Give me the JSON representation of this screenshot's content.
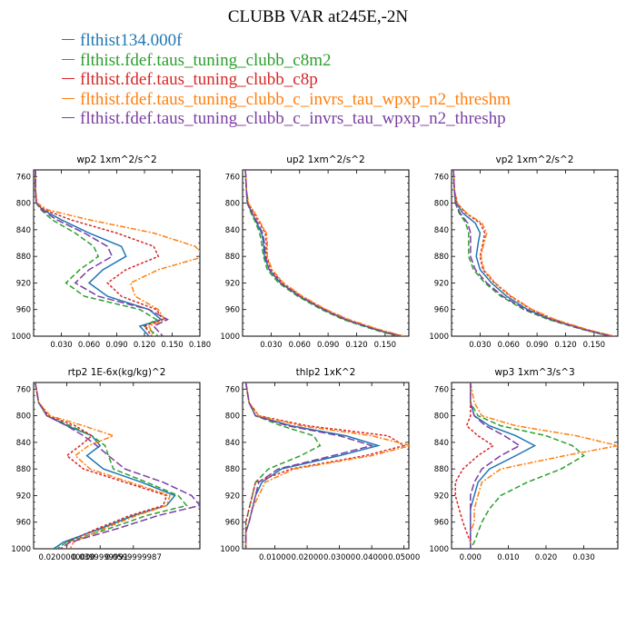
{
  "title": "CLUBB VAR at245E,-2N",
  "colors": {
    "flthist134.000f": "#1f77b4",
    "flthist.fdef.taus_tuning_clubb_c8m2": "#2ca02c",
    "flthist.fdef.taus_tuning_clubb_c8p": "#d62728",
    "flthist.fdef.taus_tuning_clubb_c_invrs_tau_wpxp_n2_threshm": "#ff7f0e",
    "flthist.fdef.taus_tuning_clubb_c_invrs_tau_wpxp_n2_threshp": "#7b3fa3"
  },
  "legend": [
    "flthist134.000f",
    "flthist.fdef.taus_tuning_clubb_c8m2",
    "flthist.fdef.taus_tuning_clubb_c8p",
    "flthist.fdef.taus_tuning_clubb_c_invrs_tau_wpxp_n2_threshm",
    "flthist.fdef.taus_tuning_clubb_c_invrs_tau_wpxp_n2_threshp"
  ],
  "chart_data": [
    {
      "type": "line",
      "title": "wp2  1xm^2/s^2",
      "xlim": [
        0,
        0.18
      ],
      "ylim": [
        1000,
        750
      ],
      "xticks": [
        0.03,
        0.06,
        0.09,
        0.12,
        0.15,
        0.18
      ],
      "xticklabels": [
        "0.030",
        "0.060",
        "0.090",
        "0.120",
        "0.150",
        "0.180"
      ],
      "yticks": [
        760,
        800,
        840,
        880,
        920,
        960,
        1000
      ],
      "y": [
        750,
        780,
        800,
        810,
        825,
        845,
        865,
        880,
        900,
        920,
        940,
        960,
        975,
        985,
        1000
      ],
      "series": [
        {
          "name": "flthist134.000f",
          "x": [
            0.002,
            0.002,
            0.003,
            0.01,
            0.03,
            0.06,
            0.095,
            0.1,
            0.075,
            0.06,
            0.08,
            0.125,
            0.138,
            0.115,
            0.125
          ]
        },
        {
          "name": "flthist.fdef.taus_tuning_clubb_c8m2",
          "x": [
            0.002,
            0.002,
            0.003,
            0.008,
            0.02,
            0.045,
            0.065,
            0.07,
            0.05,
            0.035,
            0.055,
            0.115,
            0.133,
            0.12,
            0.135
          ]
        },
        {
          "name": "flthist.fdef.taus_tuning_clubb_c8p",
          "x": [
            0.002,
            0.002,
            0.003,
            0.012,
            0.04,
            0.09,
            0.13,
            0.135,
            0.1,
            0.08,
            0.095,
            0.133,
            0.14,
            0.12,
            0.128
          ]
        },
        {
          "name": "flthist.fdef.taus_tuning_clubb_c_invrs_tau_wpxp_n2_threshm",
          "x": [
            0.002,
            0.002,
            0.004,
            0.015,
            0.06,
            0.13,
            0.175,
            0.185,
            0.135,
            0.105,
            0.11,
            0.135,
            0.142,
            0.125,
            0.13
          ]
        },
        {
          "name": "flthist.fdef.taus_tuning_clubb_c_invrs_tau_wpxp_n2_threshp",
          "x": [
            0.002,
            0.002,
            0.003,
            0.009,
            0.025,
            0.055,
            0.08,
            0.085,
            0.06,
            0.045,
            0.07,
            0.125,
            0.145,
            0.13,
            0.14
          ]
        }
      ]
    },
    {
      "type": "line",
      "title": "up2  1xm^2/s^2",
      "xlim": [
        0,
        0.175
      ],
      "ylim": [
        1000,
        750
      ],
      "xticks": [
        0.03,
        0.06,
        0.09,
        0.12,
        0.15
      ],
      "xticklabels": [
        "0.030",
        "0.060",
        "0.090",
        "0.120",
        "0.150"
      ],
      "yticks": [
        760,
        800,
        840,
        880,
        920,
        960,
        1000
      ],
      "y": [
        750,
        780,
        800,
        815,
        830,
        845,
        860,
        880,
        900,
        920,
        940,
        960,
        975,
        990,
        1000
      ],
      "series": [
        {
          "name": "flthist134.000f",
          "x": [
            0.003,
            0.004,
            0.005,
            0.01,
            0.015,
            0.02,
            0.022,
            0.023,
            0.028,
            0.04,
            0.06,
            0.085,
            0.108,
            0.14,
            0.165
          ]
        },
        {
          "name": "flthist.fdef.taus_tuning_clubb_c8m2",
          "x": [
            0.003,
            0.004,
            0.005,
            0.009,
            0.014,
            0.018,
            0.02,
            0.022,
            0.026,
            0.038,
            0.058,
            0.083,
            0.106,
            0.138,
            0.163
          ]
        },
        {
          "name": "flthist.fdef.taus_tuning_clubb_c8p",
          "x": [
            0.003,
            0.004,
            0.006,
            0.012,
            0.018,
            0.024,
            0.025,
            0.025,
            0.03,
            0.042,
            0.062,
            0.087,
            0.11,
            0.142,
            0.168
          ]
        },
        {
          "name": "flthist.fdef.taus_tuning_clubb_c_invrs_tau_wpxp_n2_threshm",
          "x": [
            0.003,
            0.004,
            0.006,
            0.013,
            0.019,
            0.025,
            0.026,
            0.026,
            0.031,
            0.043,
            0.063,
            0.088,
            0.112,
            0.144,
            0.17
          ]
        },
        {
          "name": "flthist.fdef.taus_tuning_clubb_c_invrs_tau_wpxp_n2_threshp",
          "x": [
            0.003,
            0.004,
            0.005,
            0.01,
            0.016,
            0.021,
            0.023,
            0.024,
            0.028,
            0.04,
            0.06,
            0.085,
            0.108,
            0.14,
            0.166
          ]
        }
      ]
    },
    {
      "type": "line",
      "title": "vp2  1xm^2/s^2",
      "xlim": [
        0,
        0.175
      ],
      "ylim": [
        1000,
        750
      ],
      "xticks": [
        0.03,
        0.06,
        0.09,
        0.12,
        0.15
      ],
      "xticklabels": [
        "0.030",
        "0.060",
        "0.090",
        "0.120",
        "0.150"
      ],
      "yticks": [
        760,
        800,
        840,
        880,
        920,
        960,
        1000
      ],
      "y": [
        750,
        780,
        800,
        815,
        830,
        845,
        860,
        880,
        900,
        920,
        940,
        960,
        975,
        990,
        1000
      ],
      "series": [
        {
          "name": "flthist134.000f",
          "x": [
            0.002,
            0.003,
            0.005,
            0.012,
            0.025,
            0.03,
            0.028,
            0.026,
            0.03,
            0.042,
            0.058,
            0.08,
            0.105,
            0.14,
            0.168
          ]
        },
        {
          "name": "flthist.fdef.taus_tuning_clubb_c8m2",
          "x": [
            0.002,
            0.003,
            0.004,
            0.008,
            0.015,
            0.018,
            0.018,
            0.018,
            0.023,
            0.035,
            0.052,
            0.076,
            0.102,
            0.138,
            0.166
          ]
        },
        {
          "name": "flthist.fdef.taus_tuning_clubb_c8p",
          "x": [
            0.002,
            0.003,
            0.006,
            0.015,
            0.03,
            0.035,
            0.033,
            0.03,
            0.033,
            0.045,
            0.062,
            0.084,
            0.108,
            0.142,
            0.17
          ]
        },
        {
          "name": "flthist.fdef.taus_tuning_clubb_c_invrs_tau_wpxp_n2_threshm",
          "x": [
            0.002,
            0.003,
            0.006,
            0.016,
            0.032,
            0.037,
            0.034,
            0.031,
            0.034,
            0.046,
            0.063,
            0.085,
            0.109,
            0.143,
            0.171
          ]
        },
        {
          "name": "flthist.fdef.taus_tuning_clubb_c_invrs_tau_wpxp_n2_threshp",
          "x": [
            0.002,
            0.003,
            0.004,
            0.009,
            0.017,
            0.02,
            0.02,
            0.02,
            0.025,
            0.037,
            0.054,
            0.078,
            0.104,
            0.139,
            0.167
          ]
        }
      ]
    },
    {
      "type": "line",
      "title": "rtp2  1E-6x(kg/kg)^2",
      "xlim": [
        0,
        0.1
      ],
      "ylim": [
        1000,
        750
      ],
      "xticks": [
        0.02,
        0.04,
        0.06
      ],
      "xticklabels": [
        "0.0200000000",
        "0.0399999991",
        "0.0599999987"
      ],
      "yticks": [
        760,
        800,
        840,
        880,
        920,
        960,
        1000
      ],
      "y": [
        750,
        780,
        800,
        815,
        830,
        845,
        860,
        880,
        900,
        920,
        935,
        950,
        970,
        990,
        1000
      ],
      "series": [
        {
          "name": "flthist134.000f",
          "x": [
            0.001,
            0.003,
            0.008,
            0.02,
            0.035,
            0.04,
            0.032,
            0.042,
            0.065,
            0.085,
            0.08,
            0.06,
            0.04,
            0.018,
            0.012
          ]
        },
        {
          "name": "flthist.fdef.taus_tuning_clubb_c8m2",
          "x": [
            0.001,
            0.003,
            0.008,
            0.022,
            0.035,
            0.043,
            0.045,
            0.048,
            0.068,
            0.087,
            0.092,
            0.068,
            0.045,
            0.02,
            0.014
          ]
        },
        {
          "name": "flthist.fdef.taus_tuning_clubb_c8p",
          "x": [
            0.001,
            0.003,
            0.009,
            0.025,
            0.035,
            0.028,
            0.02,
            0.03,
            0.055,
            0.08,
            0.078,
            0.058,
            0.038,
            0.02,
            0.02
          ]
        },
        {
          "name": "flthist.fdef.taus_tuning_clubb_c_invrs_tau_wpxp_n2_threshm",
          "x": [
            0.001,
            0.003,
            0.01,
            0.03,
            0.048,
            0.033,
            0.025,
            0.034,
            0.058,
            0.082,
            0.08,
            0.062,
            0.042,
            0.024,
            0.022
          ]
        },
        {
          "name": "flthist.fdef.taus_tuning_clubb_c_invrs_tau_wpxp_n2_threshp",
          "x": [
            0.001,
            0.003,
            0.008,
            0.02,
            0.03,
            0.038,
            0.045,
            0.055,
            0.078,
            0.095,
            0.1,
            0.075,
            0.05,
            0.022,
            0.016
          ]
        }
      ]
    },
    {
      "type": "line",
      "title": "thlp2  1xK^2",
      "xlim": [
        0,
        0.0515
      ],
      "ylim": [
        1000,
        750
      ],
      "xticks": [
        0.01,
        0.02,
        0.03,
        0.04,
        0.05
      ],
      "xticklabels": [
        "0.01000",
        "0.02000",
        "0.03000",
        "0.04000",
        "0.05000"
      ],
      "yticks": [
        760,
        800,
        840,
        880,
        920,
        960,
        1000
      ],
      "y": [
        750,
        780,
        800,
        815,
        830,
        845,
        860,
        880,
        900,
        920,
        940,
        960,
        975,
        990,
        1000
      ],
      "series": [
        {
          "name": "flthist134.000f",
          "x": [
            0.001,
            0.002,
            0.004,
            0.015,
            0.032,
            0.042,
            0.03,
            0.012,
            0.006,
            0.004,
            0.003,
            0.002,
            0.001,
            0.001,
            0.001
          ]
        },
        {
          "name": "flthist.fdef.taus_tuning_clubb_c8m2",
          "x": [
            0.001,
            0.002,
            0.004,
            0.012,
            0.022,
            0.024,
            0.018,
            0.008,
            0.004,
            0.003,
            0.002,
            0.001,
            0.001,
            0.001,
            0.001
          ]
        },
        {
          "name": "flthist.fdef.taus_tuning_clubb_c8p",
          "x": [
            0.001,
            0.002,
            0.005,
            0.02,
            0.045,
            0.05,
            0.038,
            0.015,
            0.004,
            0.003,
            0.002,
            0.001,
            0.001,
            0.001,
            0.001
          ]
        },
        {
          "name": "flthist.fdef.taus_tuning_clubb_c_invrs_tau_wpxp_n2_threshm",
          "x": [
            0.001,
            0.002,
            0.005,
            0.018,
            0.04,
            0.052,
            0.04,
            0.016,
            0.007,
            0.005,
            0.003,
            0.002,
            0.001,
            0.001,
            0.001
          ]
        },
        {
          "name": "flthist.fdef.taus_tuning_clubb_c_invrs_tau_wpxp_n2_threshp",
          "x": [
            0.001,
            0.002,
            0.004,
            0.014,
            0.03,
            0.04,
            0.028,
            0.011,
            0.005,
            0.004,
            0.003,
            0.002,
            0.001,
            0.001,
            0.001
          ]
        }
      ]
    },
    {
      "type": "line",
      "title": "wp3  1xm^3/s^3",
      "xlim": [
        -0.005,
        0.039
      ],
      "ylim": [
        1000,
        750
      ],
      "xticks": [
        0.0,
        0.01,
        0.02,
        0.03
      ],
      "xticklabels": [
        "0.000",
        "0.010",
        "0.020",
        "0.030"
      ],
      "yticks": [
        760,
        800,
        840,
        880,
        920,
        960,
        1000
      ],
      "y": [
        750,
        780,
        800,
        815,
        830,
        845,
        860,
        880,
        900,
        920,
        940,
        960,
        975,
        990,
        1000
      ],
      "series": [
        {
          "name": "flthist134.000f",
          "x": [
            0.0,
            0.0,
            0.001,
            0.005,
            0.012,
            0.017,
            0.012,
            0.005,
            0.002,
            0.001,
            0.0,
            0.0,
            0.0,
            0.0,
            0.0
          ]
        },
        {
          "name": "flthist.fdef.taus_tuning_clubb_c8m2",
          "x": [
            0.0,
            0.0,
            0.002,
            0.008,
            0.02,
            0.027,
            0.03,
            0.024,
            0.015,
            0.008,
            0.005,
            0.003,
            0.002,
            0.001,
            0.0
          ]
        },
        {
          "name": "flthist.fdef.taus_tuning_clubb_c8p",
          "x": [
            0.0,
            0.0,
            0.0,
            -0.001,
            0.002,
            0.006,
            0.002,
            -0.002,
            -0.004,
            -0.004,
            -0.003,
            -0.002,
            -0.001,
            0.0,
            0.0
          ]
        },
        {
          "name": "flthist.fdef.taus_tuning_clubb_c_invrs_tau_wpxp_n2_threshm",
          "x": [
            0.0,
            0.001,
            0.003,
            0.012,
            0.028,
            0.039,
            0.025,
            0.008,
            0.003,
            0.002,
            0.001,
            0.001,
            0.0,
            0.0,
            0.0
          ]
        },
        {
          "name": "flthist.fdef.taus_tuning_clubb_c_invrs_tau_wpxp_n2_threshp",
          "x": [
            0.0,
            0.0,
            0.001,
            0.004,
            0.009,
            0.013,
            0.008,
            0.003,
            0.001,
            0.0,
            0.0,
            0.0,
            0.0,
            0.0,
            0.0
          ]
        }
      ]
    }
  ]
}
